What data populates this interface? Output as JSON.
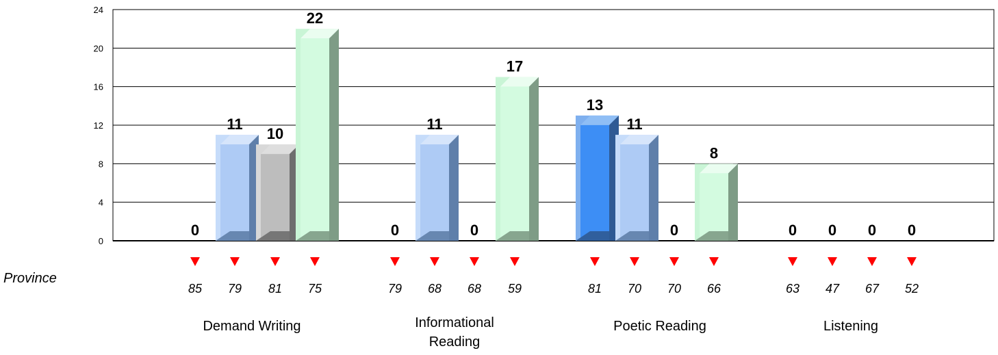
{
  "chart_data": {
    "type": "bar",
    "ylim": [
      0,
      24
    ],
    "yticks": [
      0,
      4,
      8,
      12,
      16,
      20,
      24
    ],
    "grid": true,
    "row_label": "Province",
    "groups": [
      {
        "label": [
          "Demand Writing"
        ],
        "bars": [
          {
            "value": 0,
            "province": 85,
            "color": "none"
          },
          {
            "value": 11,
            "province": 79,
            "color": "lightblue"
          },
          {
            "value": 10,
            "province": 81,
            "color": "gray"
          },
          {
            "value": 22,
            "province": 75,
            "color": "mint"
          }
        ]
      },
      {
        "label": [
          "Informational",
          "Reading"
        ],
        "bars": [
          {
            "value": 0,
            "province": 79,
            "color": "none"
          },
          {
            "value": 11,
            "province": 68,
            "color": "lightblue"
          },
          {
            "value": 0,
            "province": 68,
            "color": "none"
          },
          {
            "value": 17,
            "province": 59,
            "color": "mint"
          }
        ]
      },
      {
        "label": [
          "Poetic Reading"
        ],
        "bars": [
          {
            "value": 13,
            "province": 81,
            "color": "blue"
          },
          {
            "value": 11,
            "province": 70,
            "color": "lightblue"
          },
          {
            "value": 0,
            "province": 70,
            "color": "none"
          },
          {
            "value": 8,
            "province": 66,
            "color": "mint"
          }
        ]
      },
      {
        "label": [
          "Listening"
        ],
        "bars": [
          {
            "value": 0,
            "province": 63,
            "color": "none"
          },
          {
            "value": 0,
            "province": 47,
            "color": "none"
          },
          {
            "value": 0,
            "province": 67,
            "color": "none"
          },
          {
            "value": 0,
            "province": 52,
            "color": "none"
          }
        ]
      }
    ]
  },
  "palette": {
    "lightblue": {
      "front": "#aecbf5",
      "top": "#d6e5fb",
      "side": "#5f7faa",
      "frame": "#c6dcfa"
    },
    "gray": {
      "front": "#bdbdbd",
      "top": "#dedede",
      "side": "#6e6e6e",
      "frame": "#d8d8d8"
    },
    "mint": {
      "front": "#d3fbe0",
      "top": "#eafdf0",
      "side": "#7e9c86",
      "frame": "#c9f5d6"
    },
    "blue": {
      "front": "#3d8ef5",
      "top": "#8fbef5",
      "side": "#2f5a94",
      "frame": "#7fb0ef"
    },
    "marker": "#ff0000"
  }
}
